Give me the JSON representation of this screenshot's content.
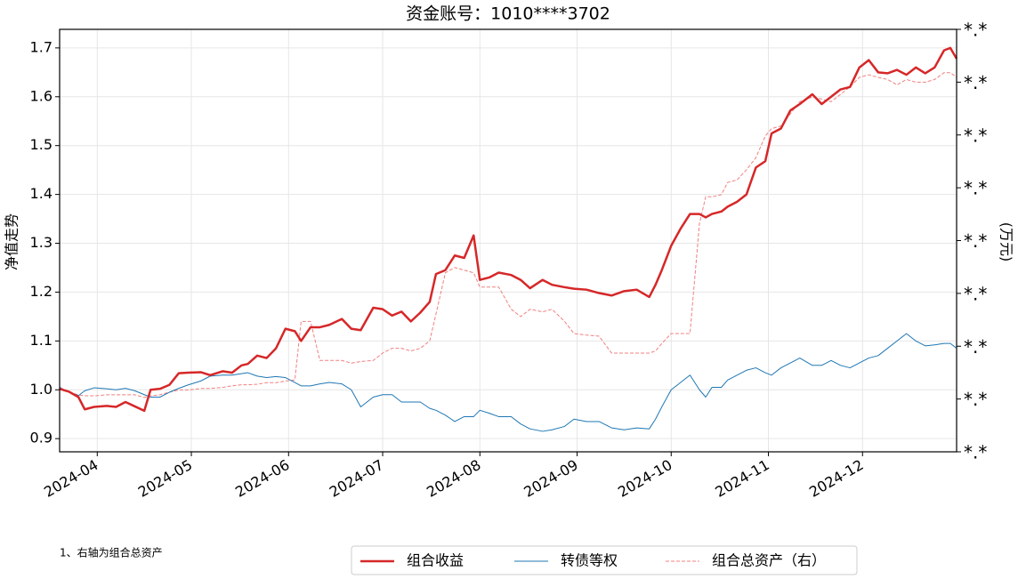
{
  "chart_data": {
    "type": "line",
    "title": "资金账号：1010****3702",
    "y_label": "净值走势",
    "y2_label": "(万元)",
    "note": "1、右轴为组合总资产",
    "grid": true,
    "legend_position": "bottom",
    "x": [
      "2024-03-20",
      "2024-03-23",
      "2024-03-26",
      "2024-03-28",
      "2024-03-31",
      "2024-04-04",
      "2024-04-07",
      "2024-04-10",
      "2024-04-13",
      "2024-04-16",
      "2024-04-18",
      "2024-04-21",
      "2024-04-24",
      "2024-04-27",
      "2024-04-30",
      "2024-05-04",
      "2024-05-07",
      "2024-05-11",
      "2024-05-14",
      "2024-05-17",
      "2024-05-19",
      "2024-05-22",
      "2024-05-25",
      "2024-05-28",
      "2024-05-31",
      "2024-06-03",
      "2024-06-05",
      "2024-06-08",
      "2024-06-11",
      "2024-06-14",
      "2024-06-18",
      "2024-06-21",
      "2024-06-24",
      "2024-06-28",
      "2024-07-01",
      "2024-07-04",
      "2024-07-07",
      "2024-07-10",
      "2024-07-13",
      "2024-07-16",
      "2024-07-18",
      "2024-07-21",
      "2024-07-24",
      "2024-07-27",
      "2024-07-30",
      "2024-08-01",
      "2024-08-04",
      "2024-08-07",
      "2024-08-11",
      "2024-08-14",
      "2024-08-17",
      "2024-08-21",
      "2024-08-24",
      "2024-08-28",
      "2024-08-31",
      "2024-09-04",
      "2024-09-08",
      "2024-09-12",
      "2024-09-16",
      "2024-09-20",
      "2024-09-24",
      "2024-09-26",
      "2024-09-28",
      "2024-10-01",
      "2024-10-04",
      "2024-10-07",
      "2024-10-10",
      "2024-10-12",
      "2024-10-14",
      "2024-10-17",
      "2024-10-19",
      "2024-10-22",
      "2024-10-25",
      "2024-10-28",
      "2024-10-31",
      "2024-11-02",
      "2024-11-05",
      "2024-11-08",
      "2024-11-11",
      "2024-11-15",
      "2024-11-18",
      "2024-11-21",
      "2024-11-24",
      "2024-11-27",
      "2024-11-30",
      "2024-12-03",
      "2024-12-06",
      "2024-12-09",
      "2024-12-12",
      "2024-12-15",
      "2024-12-18",
      "2024-12-21",
      "2024-12-24",
      "2024-12-27",
      "2024-12-29",
      "2024-12-31"
    ],
    "xlim": [
      "2024-03-20",
      "2024-12-31"
    ],
    "xticks": [
      "2024-04",
      "2024-05",
      "2024-06",
      "2024-07",
      "2024-08",
      "2024-09",
      "2024-10",
      "2024-11",
      "2024-12"
    ],
    "ylim": [
      0.873,
      1.738
    ],
    "yticks": [
      0.9,
      {
        "value": 1,
        "label": "1.0"
      },
      1.1,
      1.2,
      1.3,
      1.4,
      1.5,
      1.6,
      1.7
    ],
    "y2lim": [
      0,
      8
    ],
    "y2ticks": [
      {
        "value": 0,
        "label": "*.*"
      },
      {
        "value": 1,
        "label": "*.*"
      },
      {
        "value": 2,
        "label": "*.*"
      },
      {
        "value": 3,
        "label": "*.*"
      },
      {
        "value": 4,
        "label": "*.*"
      },
      {
        "value": 5,
        "label": "*.*"
      },
      {
        "value": 6,
        "label": "*.*"
      },
      {
        "value": 7,
        "label": "*.*"
      },
      {
        "value": 8,
        "label": "*.*"
      }
    ],
    "series": [
      {
        "name": "组合收益",
        "color": "#d62728",
        "linewidth": 2.5,
        "linestyle": "solid",
        "values": [
          1.002,
          0.996,
          0.985,
          0.96,
          0.965,
          0.967,
          0.965,
          0.975,
          0.966,
          0.957,
          1.0,
          1.002,
          1.01,
          1.034,
          1.035,
          1.036,
          1.03,
          1.038,
          1.035,
          1.05,
          1.053,
          1.07,
          1.065,
          1.085,
          1.125,
          1.12,
          1.1,
          1.128,
          1.128,
          1.133,
          1.145,
          1.125,
          1.122,
          1.168,
          1.165,
          1.152,
          1.16,
          1.14,
          1.158,
          1.18,
          1.237,
          1.245,
          1.275,
          1.27,
          1.316,
          1.225,
          1.23,
          1.24,
          1.235,
          1.225,
          1.208,
          1.225,
          1.215,
          1.21,
          1.207,
          1.205,
          1.198,
          1.193,
          1.202,
          1.205,
          1.19,
          1.215,
          1.245,
          1.295,
          1.33,
          1.36,
          1.36,
          1.353,
          1.36,
          1.365,
          1.375,
          1.385,
          1.4,
          1.455,
          1.468,
          1.525,
          1.535,
          1.572,
          1.585,
          1.605,
          1.585,
          1.6,
          1.615,
          1.62,
          1.66,
          1.675,
          1.65,
          1.648,
          1.655,
          1.645,
          1.66,
          1.648,
          1.66,
          1.695,
          1.7,
          1.678
        ]
      },
      {
        "name": "转债等权",
        "color": "#1f77b4",
        "linewidth": 1,
        "linestyle": "solid",
        "values": [
          1.005,
          0.995,
          0.988,
          0.998,
          1.004,
          1.002,
          1.0,
          1.003,
          0.998,
          0.99,
          0.985,
          0.985,
          0.995,
          1.003,
          1.01,
          1.018,
          1.028,
          1.03,
          1.03,
          1.033,
          1.035,
          1.028,
          1.025,
          1.027,
          1.025,
          1.015,
          1.008,
          1.008,
          1.012,
          1.015,
          1.012,
          1.0,
          0.965,
          0.985,
          0.99,
          0.99,
          0.975,
          0.975,
          0.975,
          0.962,
          0.958,
          0.948,
          0.935,
          0.945,
          0.945,
          0.958,
          0.952,
          0.945,
          0.945,
          0.93,
          0.92,
          0.915,
          0.918,
          0.925,
          0.94,
          0.935,
          0.935,
          0.922,
          0.918,
          0.922,
          0.92,
          0.94,
          0.965,
          1.0,
          1.015,
          1.03,
          1.0,
          0.985,
          1.005,
          1.005,
          1.02,
          1.03,
          1.04,
          1.045,
          1.035,
          1.03,
          1.045,
          1.055,
          1.065,
          1.05,
          1.05,
          1.06,
          1.05,
          1.045,
          1.055,
          1.065,
          1.07,
          1.085,
          1.1,
          1.115,
          1.1,
          1.09,
          1.092,
          1.095,
          1.095,
          1.085
        ]
      },
      {
        "name": "组合总资产（右）",
        "color": "#f08080",
        "linewidth": 1,
        "linestyle": "dashed",
        "axis": "y2",
        "values": [
          1.22,
          1.13,
          1.08,
          1.06,
          1.06,
          1.08,
          1.08,
          1.08,
          1.08,
          1.03,
          1.06,
          1.08,
          1.13,
          1.17,
          1.17,
          1.2,
          1.2,
          1.22,
          1.25,
          1.27,
          1.27,
          1.28,
          1.31,
          1.31,
          1.34,
          1.36,
          2.47,
          2.47,
          1.73,
          1.73,
          1.73,
          1.68,
          1.71,
          1.73,
          1.87,
          1.96,
          1.96,
          1.91,
          1.96,
          2.1,
          2.61,
          3.39,
          3.49,
          3.44,
          3.39,
          3.12,
          3.12,
          3.12,
          2.7,
          2.56,
          2.7,
          2.65,
          2.7,
          2.47,
          2.24,
          2.21,
          2.19,
          1.87,
          1.87,
          1.87,
          1.87,
          1.91,
          2.05,
          2.24,
          2.24,
          2.24,
          4.32,
          4.83,
          4.83,
          4.87,
          5.1,
          5.15,
          5.34,
          5.57,
          5.98,
          6.12,
          6.17,
          6.4,
          6.63,
          6.72,
          6.68,
          6.63,
          6.77,
          6.91,
          7.09,
          7.14,
          7.09,
          7.05,
          6.95,
          7.05,
          7.0,
          7.0,
          7.05,
          7.18,
          7.18,
          7.09
        ]
      }
    ]
  }
}
